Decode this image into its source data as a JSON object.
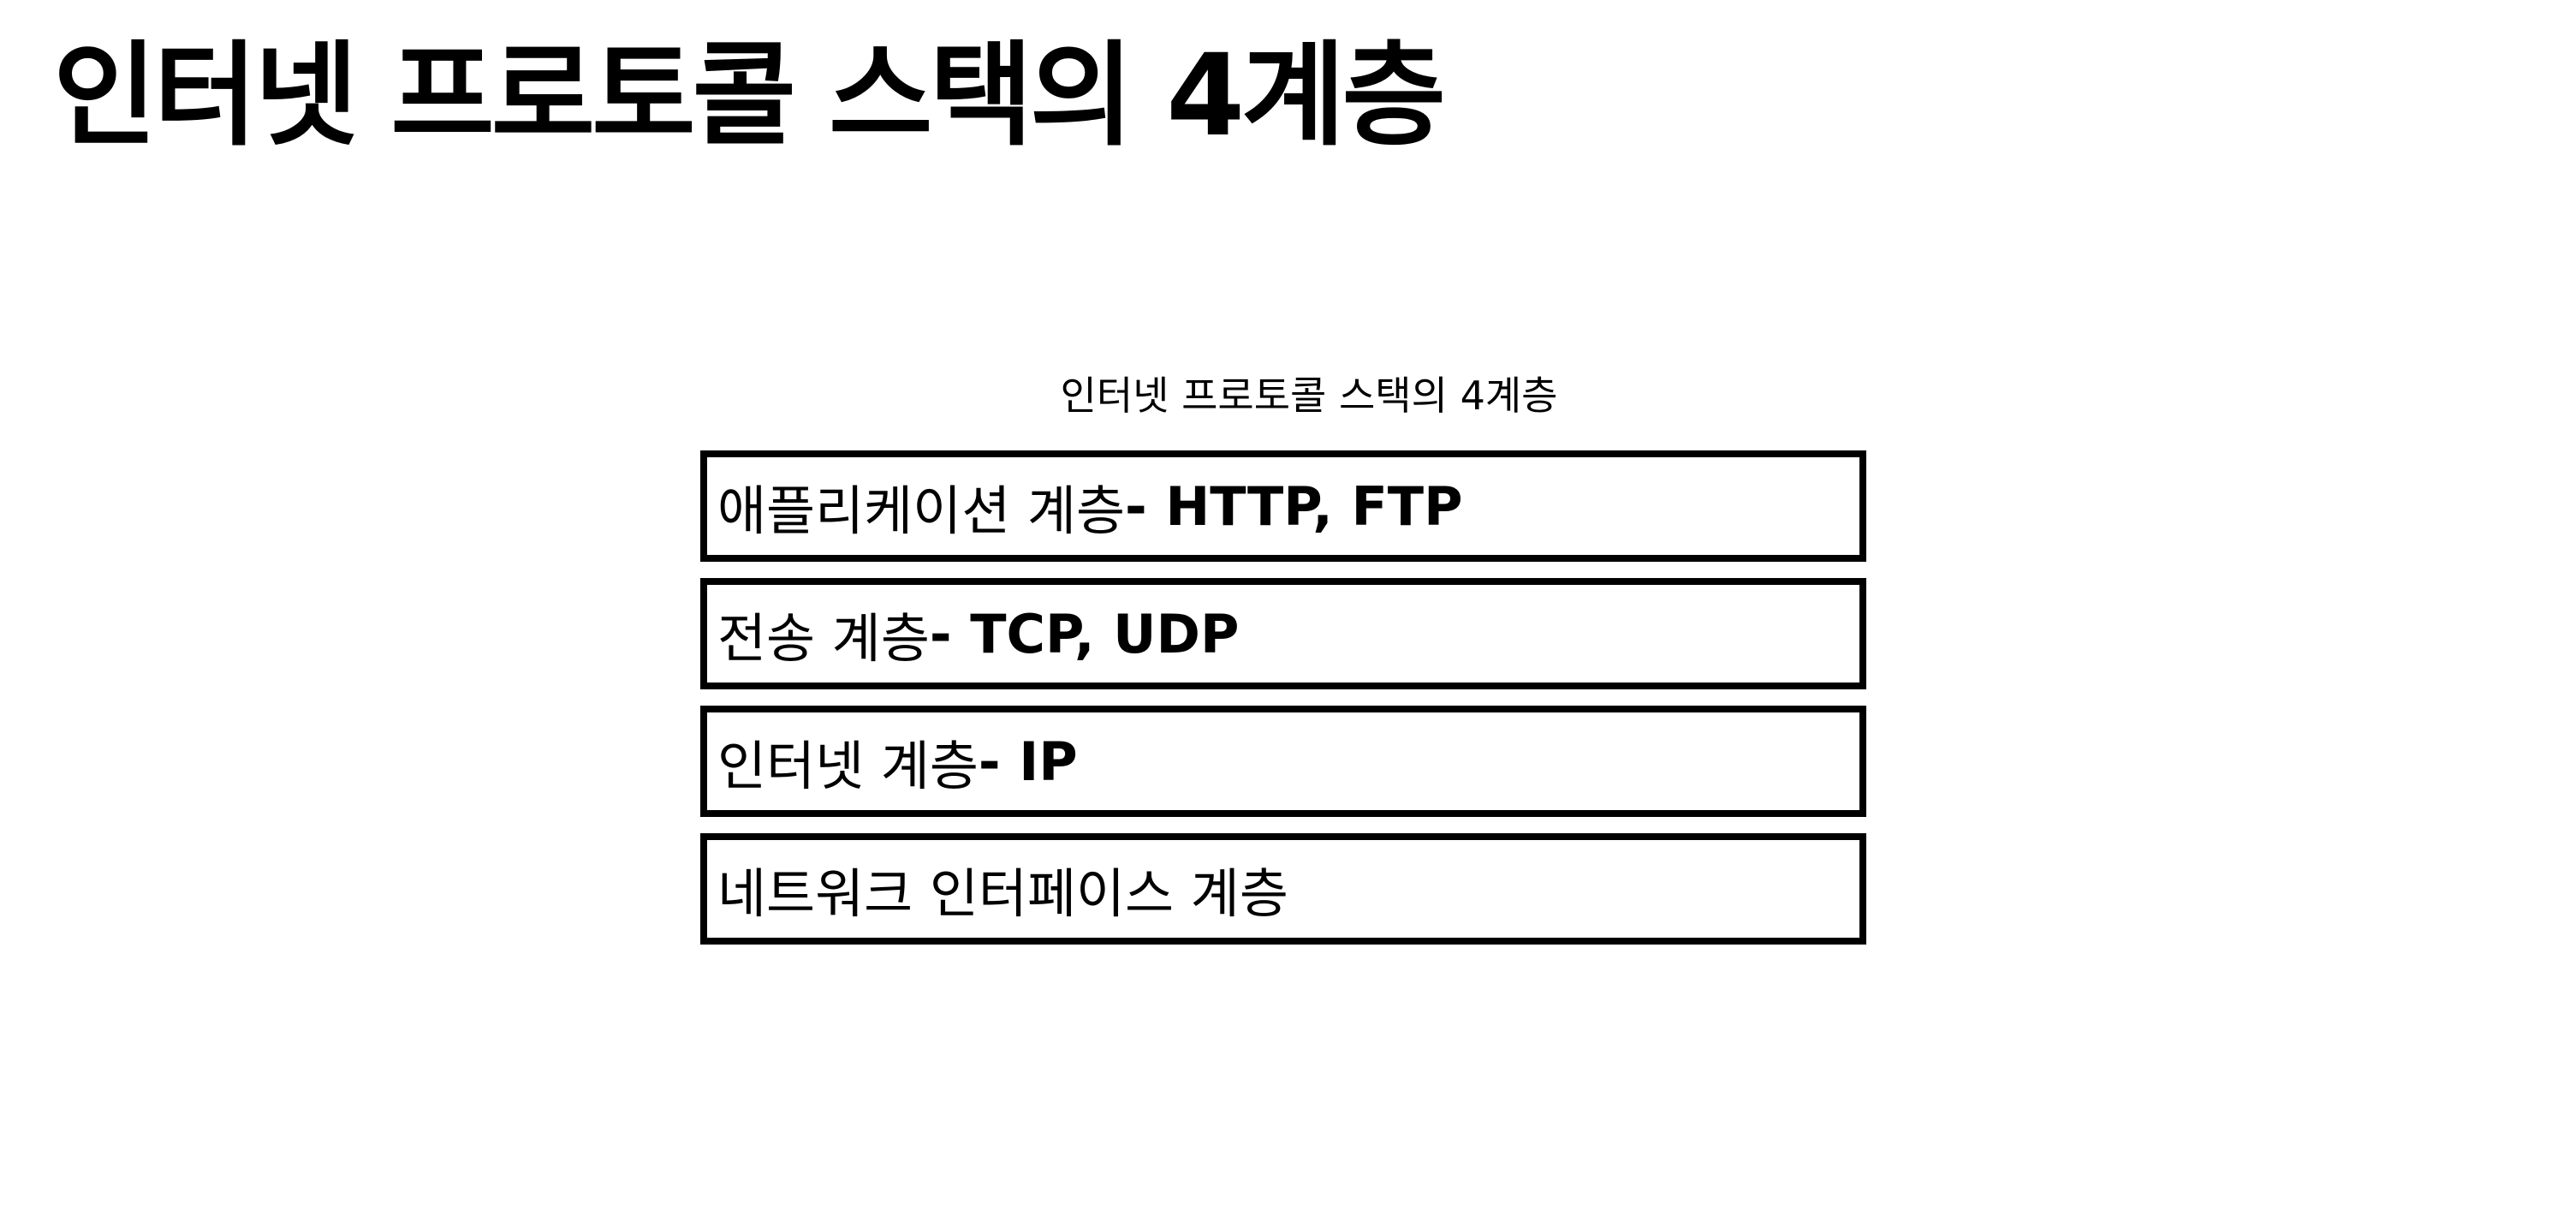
{
  "slide": {
    "title": "인터넷 프로토콜 스택의 4계층"
  },
  "diagram": {
    "caption": "인터넷 프로토콜 스택의 4계층",
    "layers": [
      {
        "name": "애플리케이션 계층",
        "protocols": " - HTTP, FTP"
      },
      {
        "name": "전송 계층",
        "protocols": " - TCP, UDP"
      },
      {
        "name": "인터넷 계층",
        "protocols": " - IP"
      },
      {
        "name": "네트워크 인터페이스 계층",
        "protocols": ""
      }
    ]
  },
  "colors": {
    "background": "#ffffff",
    "text": "#000000",
    "border": "#000000"
  }
}
